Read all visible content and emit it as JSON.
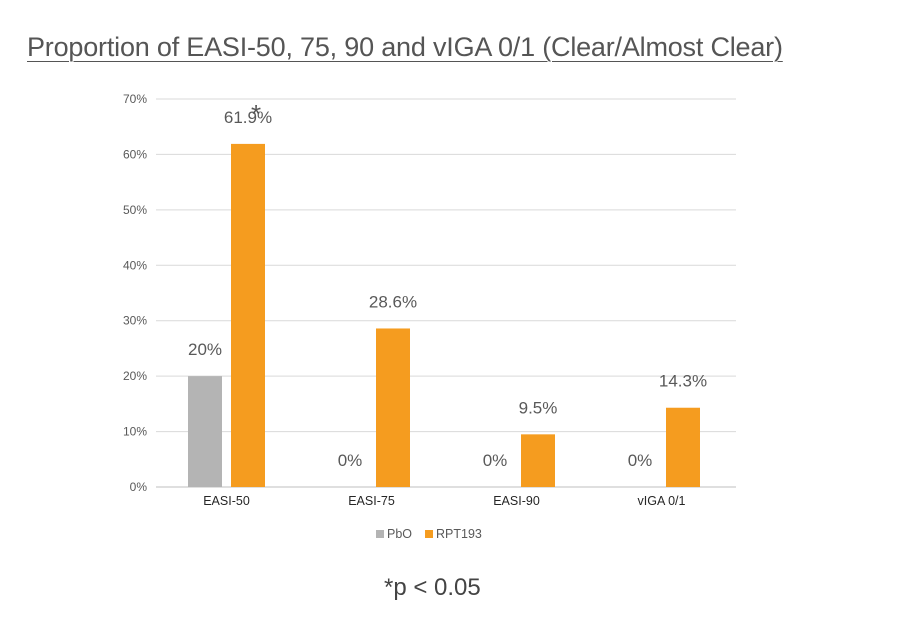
{
  "chart_data": {
    "type": "bar",
    "title": "Proportion of EASI-50, 75, 90 and vIGA 0/1 (Clear/Almost Clear)",
    "xlabel": "",
    "ylabel": "",
    "ylim": [
      0,
      70
    ],
    "y_ticks": [
      "0%",
      "10%",
      "20%",
      "30%",
      "40%",
      "50%",
      "60%",
      "70%"
    ],
    "categories": [
      "EASI-50",
      "EASI-75",
      "EASI-90",
      "vIGA 0/1"
    ],
    "series": [
      {
        "name": "PbO",
        "color": "#B4B4B4",
        "values": [
          20,
          0,
          0,
          0
        ],
        "labels": [
          "20%",
          "0%",
          "0%",
          "0%"
        ]
      },
      {
        "name": "RPT193",
        "color": "#F59C1F",
        "values": [
          61.9,
          28.6,
          9.5,
          14.3
        ],
        "labels": [
          "61.9%",
          "28.6%",
          "9.5%",
          "14.3%"
        ]
      }
    ],
    "annotations": [
      {
        "text": "*",
        "series": "RPT193",
        "category": "EASI-50"
      }
    ],
    "legend": "bottom",
    "grid": true,
    "footnote": "*p < 0.05"
  }
}
